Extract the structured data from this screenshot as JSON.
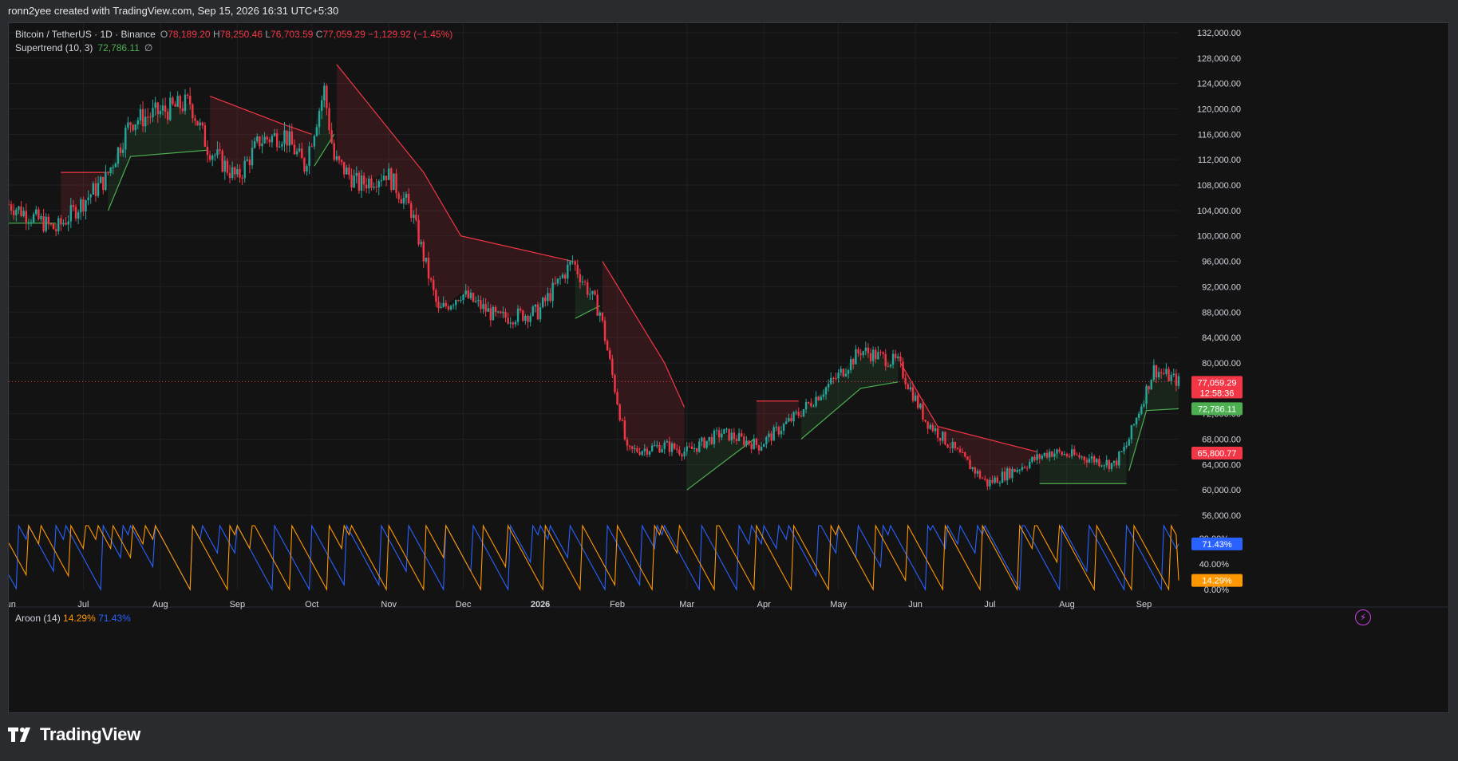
{
  "header": {
    "credit": "ronn2yee created with TradingView.com, Sep 15, 2026 16:31 UTC+5:30"
  },
  "legend": {
    "symbol": "Bitcoin / TetherUS · 1D · Binance",
    "open_label": "O",
    "open": "78,189.20",
    "high_label": "H",
    "high": "78,250.46",
    "low_label": "L",
    "low": "76,703.59",
    "close_label": "C",
    "close": "77,059.29",
    "change": "−1,129.92 (−1.45%)",
    "indicator": "Supertrend (10, 3)",
    "indicator_value": "72,786.11",
    "indicator_extra": "∅"
  },
  "aroon_legend": {
    "name": "Aroon (14)",
    "up": "14.29%",
    "down": "71.43%"
  },
  "badges": {
    "price": "77,059.29",
    "countdown": "12:58:36",
    "supertrend": "72,786.11",
    "level": "65,800.77",
    "aroon_down": "71.43%",
    "aroon_up": "14.29%"
  },
  "colors": {
    "up": "#26a69a",
    "down": "#f23645",
    "supertrend_up": "#4caf50",
    "supertrend_down": "#f23645",
    "aroon_up": "#ff9800",
    "aroon_down": "#2962ff",
    "background": "#131314"
  },
  "watermark": {
    "text": "TradingView"
  },
  "chart_data": [
    {
      "type": "candlestick",
      "title": "Bitcoin / TetherUS · 1D · Binance",
      "y_axis_ticks": [
        "132,000.00",
        "128,000.00",
        "124,000.00",
        "120,000.00",
        "116,000.00",
        "112,000.00",
        "108,000.00",
        "104,000.00",
        "100,000.00",
        "96,000.00",
        "92,000.00",
        "88,000.00",
        "84,000.00",
        "80,000.00",
        "72,000.00",
        "68,000.00",
        "64,000.00",
        "60,000.00",
        "56,000.00"
      ],
      "ylim": [
        55000,
        133500
      ],
      "x_axis_ticks": [
        "Jun",
        "Jul",
        "Aug",
        "Sep",
        "Oct",
        "Nov",
        "Dec",
        "2026",
        "Feb",
        "Mar",
        "Apr",
        "May",
        "Jun",
        "Jul",
        "Aug",
        "Sep"
      ],
      "x_range": [
        "2025-06-01",
        "2026-09-15"
      ],
      "close_series": {
        "x": [
          "2025-06-01",
          "2025-06-20",
          "2025-07-10",
          "2025-07-20",
          "2025-08-13",
          "2025-08-20",
          "2025-09-01",
          "2025-09-10",
          "2025-09-20",
          "2025-09-28",
          "2025-10-06",
          "2025-10-10",
          "2025-10-20",
          "2025-10-31",
          "2025-11-10",
          "2025-11-21",
          "2025-11-30",
          "2025-12-15",
          "2025-12-31",
          "2026-01-14",
          "2026-01-25",
          "2026-02-05",
          "2026-02-20",
          "2026-03-01",
          "2026-03-15",
          "2026-03-30",
          "2026-04-15",
          "2026-05-01",
          "2026-05-10",
          "2026-05-25",
          "2026-06-05",
          "2026-06-20",
          "2026-06-30",
          "2026-07-10",
          "2026-07-25",
          "2026-08-10",
          "2026-08-20",
          "2026-08-25",
          "2026-09-05",
          "2026-09-15"
        ],
        "y": [
          105000,
          101000,
          109000,
          118000,
          121000,
          114000,
          109000,
          115000,
          116000,
          111000,
          123000,
          112000,
          108000,
          110000,
          104000,
          88000,
          91000,
          87000,
          88000,
          96000,
          88000,
          66000,
          67000,
          66000,
          69000,
          67000,
          72000,
          78000,
          82000,
          80000,
          71000,
          65000,
          61000,
          63000,
          66000,
          65000,
          64000,
          67000,
          79000,
          77059
        ]
      },
      "supertrend": {
        "last_value": 72786.11,
        "segments": [
          {
            "direction": "up",
            "x": [
              "2025-06-01",
              "2025-06-20"
            ],
            "y": [
              102000,
              102000
            ]
          },
          {
            "direction": "down",
            "x": [
              "2025-06-22",
              "2025-07-10"
            ],
            "y": [
              110000,
              110000
            ]
          },
          {
            "direction": "up",
            "x": [
              "2025-07-11",
              "2025-07-20",
              "2025-08-20"
            ],
            "y": [
              104000,
              112500,
              113500
            ]
          },
          {
            "direction": "down",
            "x": [
              "2025-08-21",
              "2025-09-20",
              "2025-10-01"
            ],
            "y": [
              122000,
              117500,
              116000
            ]
          },
          {
            "direction": "up",
            "x": [
              "2025-10-02",
              "2025-10-10"
            ],
            "y": [
              111000,
              116000
            ]
          },
          {
            "direction": "down",
            "x": [
              "2025-10-11",
              "2025-11-15",
              "2025-11-30",
              "2026-01-14"
            ],
            "y": [
              127000,
              110000,
              100000,
              96000
            ]
          },
          {
            "direction": "up",
            "x": [
              "2026-01-15",
              "2026-01-25"
            ],
            "y": [
              87000,
              89000
            ]
          },
          {
            "direction": "down",
            "x": [
              "2026-01-26",
              "2026-02-20",
              "2026-02-28"
            ],
            "y": [
              96000,
              80000,
              73000
            ]
          },
          {
            "direction": "up",
            "x": [
              "2026-03-01",
              "2026-03-28"
            ],
            "y": [
              60000,
              68000
            ]
          },
          {
            "direction": "down",
            "x": [
              "2026-03-29",
              "2026-04-15"
            ],
            "y": [
              74000,
              74000
            ]
          },
          {
            "direction": "up",
            "x": [
              "2026-04-16",
              "2026-05-10",
              "2026-05-25"
            ],
            "y": [
              68000,
              76000,
              77000
            ]
          },
          {
            "direction": "down",
            "x": [
              "2026-05-26",
              "2026-06-10",
              "2026-07-20"
            ],
            "y": [
              80000,
              70000,
              66000
            ]
          },
          {
            "direction": "up",
            "x": [
              "2026-07-21",
              "2026-08-25"
            ],
            "y": [
              61000,
              61000
            ]
          },
          {
            "direction": "up",
            "x": [
              "2026-08-26",
              "2026-09-02",
              "2026-09-15"
            ],
            "y": [
              63000,
              72500,
              72786.11
            ]
          }
        ]
      },
      "price_line": 77059.29,
      "level_marker": 65800.77
    },
    {
      "type": "line",
      "title": "Aroon (14)",
      "y_axis_ticks": [
        "80.00%",
        "40.00%",
        "0.00%"
      ],
      "ylim": [
        0,
        100
      ],
      "series": [
        {
          "name": "Aroon Up",
          "last_value": 14.29
        },
        {
          "name": "Aroon Down",
          "last_value": 71.43
        }
      ]
    }
  ]
}
